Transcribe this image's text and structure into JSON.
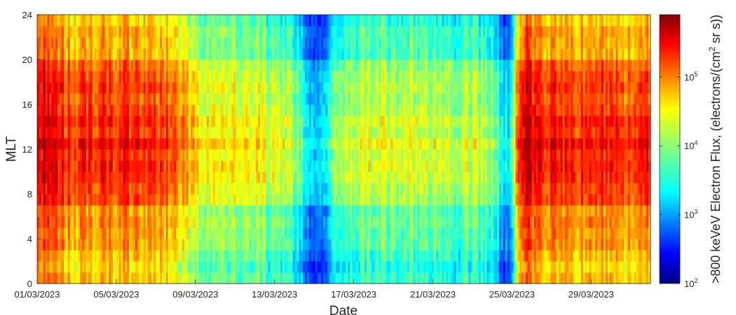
{
  "chart_data": {
    "type": "heatmap",
    "title": "",
    "xlabel": "Date",
    "ylabel": "MLT",
    "x_tick_labels": [
      "01/03/2023",
      "05/03/2023",
      "09/03/2023",
      "13/03/2023",
      "17/03/2023",
      "21/03/2023",
      "25/03/2023",
      "29/03/2023"
    ],
    "x_range_days": [
      0,
      31
    ],
    "y_ticks": [
      "0",
      "4",
      "8",
      "12",
      "16",
      "20",
      "24"
    ],
    "ylim": [
      0,
      24
    ],
    "colorbar": {
      "label": ">800 keVeV Electron Flux, (electrons/(cm² sr s))",
      "label_main": ">800 keVeV Electron Flux, (electrons/(cm",
      "label_sup": "2",
      "label_tail": " sr s))",
      "scale": "log",
      "range": [
        100,
        800000
      ],
      "ticks": [
        {
          "base": "10",
          "exp": "2",
          "value": 100
        },
        {
          "base": "10",
          "exp": "3",
          "value": 1000
        },
        {
          "base": "10",
          "exp": "4",
          "value": 10000
        },
        {
          "base": "10",
          "exp": "5",
          "value": 100000
        }
      ],
      "colormap": "jet"
    },
    "flux_profile": {
      "description_units": "log10 flux by day (approximate, day-side MLT)",
      "days": [
        0,
        1,
        2,
        3,
        4,
        5,
        6,
        7,
        8,
        9,
        10,
        11,
        12,
        13,
        13.5,
        14,
        14.5,
        15,
        15.5,
        16,
        17,
        18,
        19,
        20,
        21,
        22,
        23,
        23.3,
        23.6,
        24,
        24.3,
        24.6,
        25,
        26,
        27,
        28,
        29,
        30,
        31
      ],
      "log10_flux": [
        5.4,
        5.1,
        4.9,
        5.0,
        5.0,
        5.0,
        4.9,
        4.8,
        4.3,
        4.2,
        4.1,
        4.1,
        4.0,
        3.8,
        3.3,
        3.1,
        3.2,
        3.6,
        3.9,
        4.0,
        4.0,
        4.0,
        4.0,
        4.0,
        3.9,
        3.9,
        3.8,
        3.5,
        3.0,
        3.2,
        4.8,
        5.4,
        5.2,
        5.0,
        5.0,
        5.0,
        5.0,
        4.9,
        5.0
      ]
    }
  }
}
